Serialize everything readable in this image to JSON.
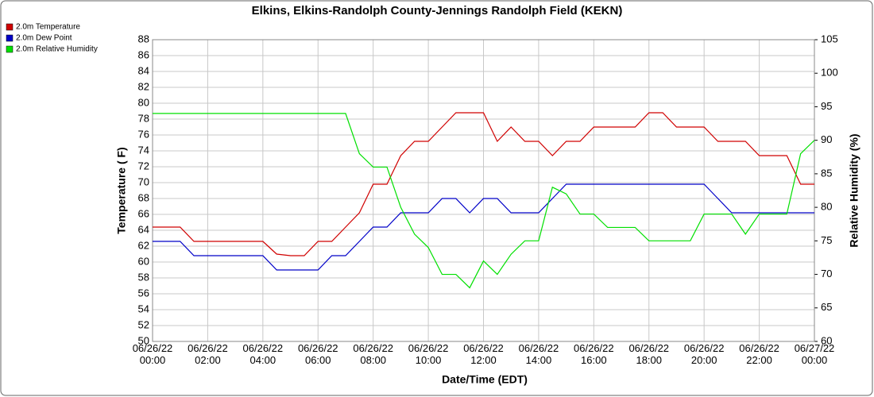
{
  "chart_data": {
    "type": "line",
    "title": "Elkins, Elkins-Randolph County-Jennings Randolph Field (KEKN)",
    "x_label": "Date/Time (EDT)",
    "y_label": "Temperature ( F)",
    "y2_label": "Relative Humidity (%)",
    "x": [
      "06/26/22 00:00",
      "06/26/22 00:30",
      "06/26/22 01:00",
      "06/26/22 01:30",
      "06/26/22 02:00",
      "06/26/22 02:30",
      "06/26/22 03:00",
      "06/26/22 03:30",
      "06/26/22 04:00",
      "06/26/22 04:30",
      "06/26/22 05:00",
      "06/26/22 05:30",
      "06/26/22 06:00",
      "06/26/22 06:30",
      "06/26/22 07:00",
      "06/26/22 07:30",
      "06/26/22 08:00",
      "06/26/22 08:30",
      "06/26/22 09:00",
      "06/26/22 09:30",
      "06/26/22 10:00",
      "06/26/22 10:30",
      "06/26/22 11:00",
      "06/26/22 11:30",
      "06/26/22 12:00",
      "06/26/22 12:30",
      "06/26/22 13:00",
      "06/26/22 13:30",
      "06/26/22 14:00",
      "06/26/22 14:30",
      "06/26/22 15:00",
      "06/26/22 15:30",
      "06/26/22 16:00",
      "06/26/22 16:30",
      "06/26/22 17:00",
      "06/26/22 17:30",
      "06/26/22 18:00",
      "06/26/22 18:30",
      "06/26/22 19:00",
      "06/26/22 19:30",
      "06/26/22 20:00",
      "06/26/22 20:30",
      "06/26/22 21:00",
      "06/26/22 21:30",
      "06/26/22 22:00",
      "06/26/22 22:30",
      "06/26/22 23:00",
      "06/26/22 23:30",
      "06/27/22 00:00"
    ],
    "xticks": [
      "06/26/22 00:00",
      "06/26/22 02:00",
      "06/26/22 04:00",
      "06/26/22 06:00",
      "06/26/22 08:00",
      "06/26/22 10:00",
      "06/26/22 12:00",
      "06/26/22 14:00",
      "06/26/22 16:00",
      "06/26/22 18:00",
      "06/26/22 20:00",
      "06/26/22 22:00",
      "06/27/22 00:00"
    ],
    "ylim": [
      50,
      88
    ],
    "yticks": [
      50,
      52,
      54,
      56,
      58,
      60,
      62,
      64,
      66,
      68,
      70,
      72,
      74,
      76,
      78,
      80,
      82,
      84,
      86,
      88
    ],
    "y2lim": [
      60,
      105
    ],
    "y2ticks": [
      60,
      65,
      70,
      75,
      80,
      85,
      90,
      95,
      100,
      105
    ],
    "grid": true,
    "series": [
      {
        "name": "2.0m Temperature",
        "color": "#d00000",
        "values": [
          64.4,
          64.4,
          64.4,
          62.6,
          62.6,
          62.6,
          62.6,
          62.6,
          62.6,
          61,
          60.8,
          60.8,
          62.6,
          62.6,
          64.4,
          66.2,
          69.8,
          69.8,
          73.4,
          75.2,
          75.2,
          77,
          78.8,
          78.8,
          78.8,
          75.2,
          77,
          75.2,
          75.2,
          73.4,
          75.2,
          75.2,
          77,
          77,
          77,
          77,
          78.8,
          78.8,
          77,
          77,
          77,
          75.2,
          75.2,
          75.2,
          73.4,
          73.4,
          73.4,
          69.8,
          69.8
        ]
      },
      {
        "name": "2.0m Dew Point",
        "color": "#0000c8",
        "values": [
          62.6,
          62.6,
          62.6,
          60.8,
          60.8,
          60.8,
          60.8,
          60.8,
          60.8,
          59,
          59,
          59,
          59,
          60.8,
          60.8,
          62.6,
          64.4,
          64.4,
          66.2,
          66.2,
          66.2,
          68,
          68,
          66.2,
          68,
          68,
          66.2,
          66.2,
          66.2,
          68,
          69.8,
          69.8,
          69.8,
          69.8,
          69.8,
          69.8,
          69.8,
          69.8,
          69.8,
          69.8,
          69.8,
          68,
          66.2,
          66.2,
          66.2,
          66.2,
          66.2,
          66.2,
          66.2
        ]
      },
      {
        "name": "2.0m Relative Humidity",
        "color": "#00e000",
        "axis": "y2",
        "values": [
          94,
          94,
          94,
          94,
          94,
          94,
          94,
          94,
          94,
          94,
          94,
          94,
          94,
          94,
          94,
          88,
          86,
          86,
          80,
          76,
          74,
          70,
          70,
          68,
          72,
          70,
          73,
          75,
          75,
          83,
          82,
          79,
          79,
          77,
          77,
          77,
          75,
          75,
          75,
          75,
          79,
          79,
          79,
          76,
          79,
          79,
          79,
          88,
          90
        ]
      }
    ]
  }
}
